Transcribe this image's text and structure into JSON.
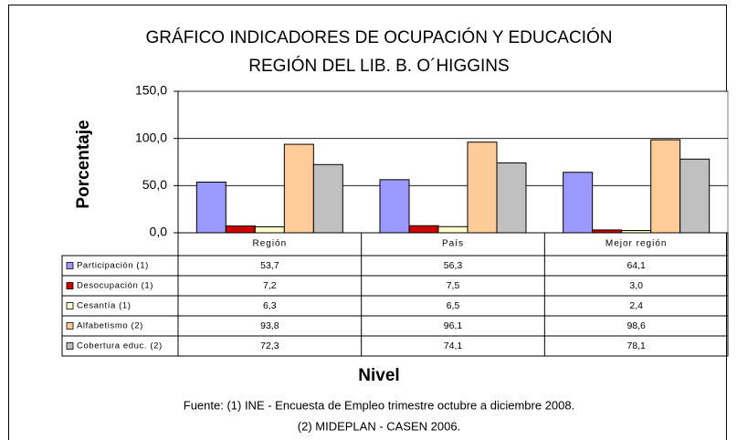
{
  "chart_data": {
    "type": "bar",
    "title": "GRÁFICO INDICADORES DE OCUPACIÓN Y EDUCACIÓN",
    "subtitle": "REGIÓN DEL LIB. B. O´HIGGINS",
    "y_label": "Porcentaje",
    "x_label": "Nivel",
    "categories": [
      "Región",
      "País",
      "Mejor región"
    ],
    "series": [
      {
        "name": "Participación (1)",
        "color": "#9999ff",
        "values": [
          53.7,
          56.3,
          64.1
        ],
        "value_labels": [
          "53,7",
          "56,3",
          "64,1"
        ]
      },
      {
        "name": "Desocupación (1)",
        "color": "#cc0000",
        "values": [
          7.2,
          7.5,
          3.0
        ],
        "value_labels": [
          "7,2",
          "7,5",
          "3,0"
        ]
      },
      {
        "name": "Cesantía (1)",
        "color": "#ffffcc",
        "values": [
          6.3,
          6.5,
          2.4
        ],
        "value_labels": [
          "6,3",
          "6,5",
          "2,4"
        ]
      },
      {
        "name": "Alfabetismo (2)",
        "color": "#ffcc99",
        "values": [
          93.8,
          96.1,
          98.6
        ],
        "value_labels": [
          "93,8",
          "96,1",
          "98,6"
        ]
      },
      {
        "name": "Cobertura educ. (2)",
        "color": "#c0c0c0",
        "values": [
          72.3,
          74.1,
          78.1
        ],
        "value_labels": [
          "72,3",
          "74,1",
          "78,1"
        ]
      }
    ],
    "ylim": [
      0,
      150
    ],
    "yticks": [
      {
        "value": 0,
        "label": "0,0"
      },
      {
        "value": 50,
        "label": "50,0"
      },
      {
        "value": 100,
        "label": "100,0"
      },
      {
        "value": 150,
        "label": "150,0"
      }
    ],
    "grid": true,
    "source": [
      "Fuente: (1) INE - Encuesta de Empleo trimestre octubre a diciembre 2008.",
      "(2) MIDEPLAN - CASEN 2006."
    ]
  }
}
